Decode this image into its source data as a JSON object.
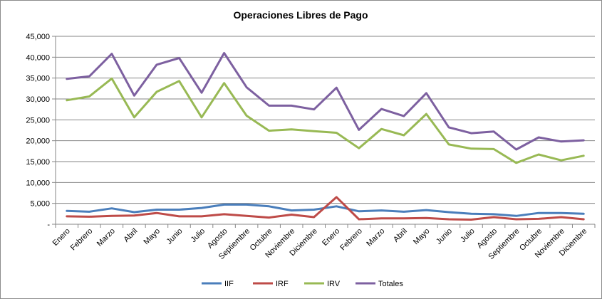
{
  "chart_data": {
    "type": "line",
    "title": "Operaciones Libres de Pago",
    "xlabel": "",
    "ylabel": "",
    "ylim": [
      0,
      45000
    ],
    "yticks": [
      "-",
      "5,000",
      "10,000",
      "15,000",
      "20,000",
      "25,000",
      "30,000",
      "35,000",
      "40,000",
      "45,000"
    ],
    "grid": true,
    "legend_position": "bottom",
    "categories": [
      "Enero",
      "Febrero",
      "Marzo",
      "Abril",
      "Mayo",
      "Junio",
      "Julio",
      "Agosto",
      "Septiembre",
      "Octubre",
      "Noviembre",
      "Diciembre",
      "Enero",
      "Febrero",
      "Marzo",
      "Abril",
      "Mayo",
      "Junio",
      "Julio",
      "Agosto",
      "Septiembre",
      "Octubre",
      "Noviembre",
      "Diciembre"
    ],
    "series": [
      {
        "name": "IIF",
        "color": "#4a7ebb",
        "values": [
          3200,
          3000,
          3800,
          2900,
          3500,
          3500,
          3900,
          4700,
          4700,
          4300,
          3300,
          3500,
          4300,
          3100,
          3300,
          3000,
          3400,
          2900,
          2500,
          2400,
          2000,
          2700,
          2700,
          2500
        ]
      },
      {
        "name": "IRF",
        "color": "#be4b48",
        "values": [
          1900,
          1800,
          2000,
          2100,
          2700,
          1900,
          1900,
          2400,
          2000,
          1600,
          2300,
          1700,
          6500,
          1200,
          1400,
          1400,
          1500,
          1200,
          1100,
          1700,
          1200,
          1300,
          1700,
          1200
        ]
      },
      {
        "name": "IRV",
        "color": "#98b954",
        "values": [
          29700,
          30600,
          34900,
          25600,
          31700,
          34300,
          25600,
          33800,
          26000,
          22400,
          22700,
          22300,
          21900,
          18200,
          22800,
          21300,
          26400,
          19100,
          18100,
          18000,
          14700,
          16700,
          15300,
          16400
        ]
      },
      {
        "name": "Totales",
        "color": "#7d60a0",
        "values": [
          34800,
          35400,
          40800,
          30800,
          38200,
          39800,
          31500,
          41000,
          32800,
          28400,
          28400,
          27500,
          32700,
          22600,
          27600,
          25900,
          31400,
          23200,
          21800,
          22200,
          17900,
          20800,
          19800,
          20100
        ]
      }
    ]
  }
}
